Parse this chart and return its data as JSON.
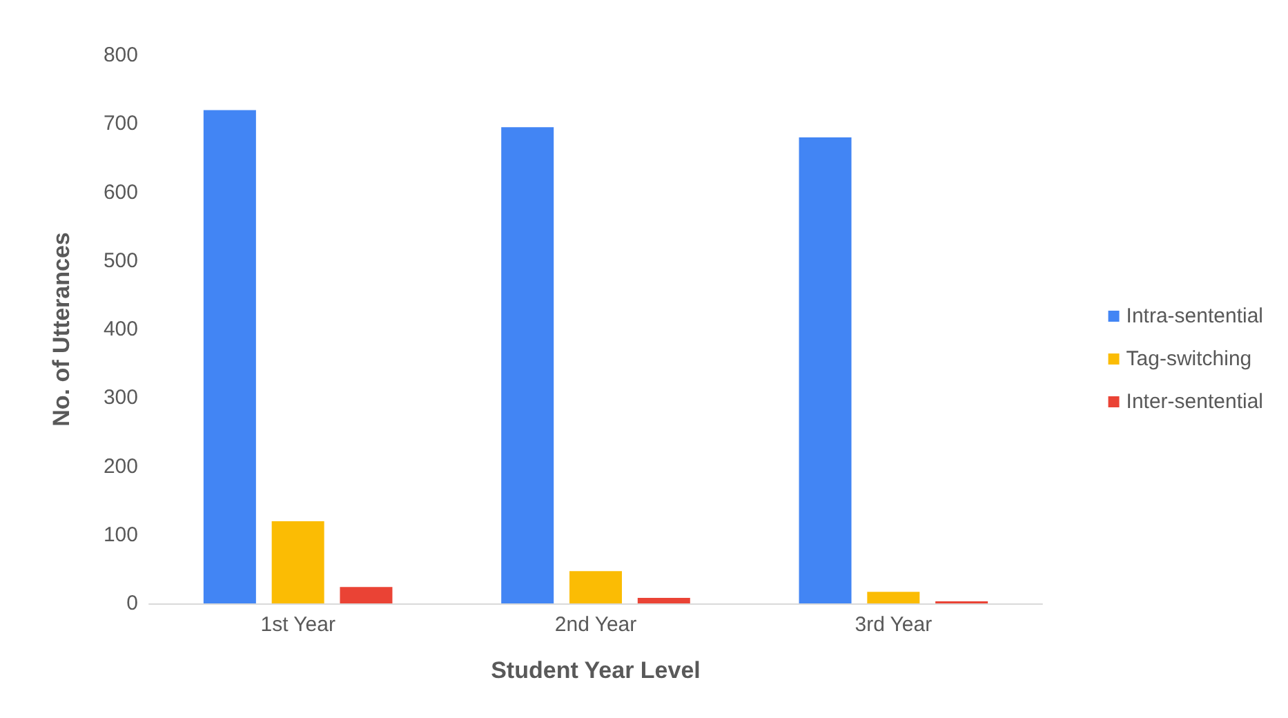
{
  "chart_data": {
    "type": "bar",
    "xlabel": "Student Year Level",
    "ylabel": "No. of Utterances",
    "categories": [
      "1st Year",
      "2nd Year",
      "3rd Year"
    ],
    "series": [
      {
        "name": "Intra-sentential",
        "color": "#4285f4",
        "values": [
          720,
          695,
          680
        ]
      },
      {
        "name": "Tag-switching",
        "color": "#fbbc04",
        "values": [
          120,
          47,
          17
        ]
      },
      {
        "name": "Inter-sentential",
        "color": "#ea4335",
        "values": [
          24,
          8,
          3
        ]
      }
    ],
    "ylim": [
      0,
      800
    ],
    "yticks": [
      0,
      100,
      200,
      300,
      400,
      500,
      600,
      700,
      800
    ],
    "grid": false,
    "legend": "right"
  }
}
